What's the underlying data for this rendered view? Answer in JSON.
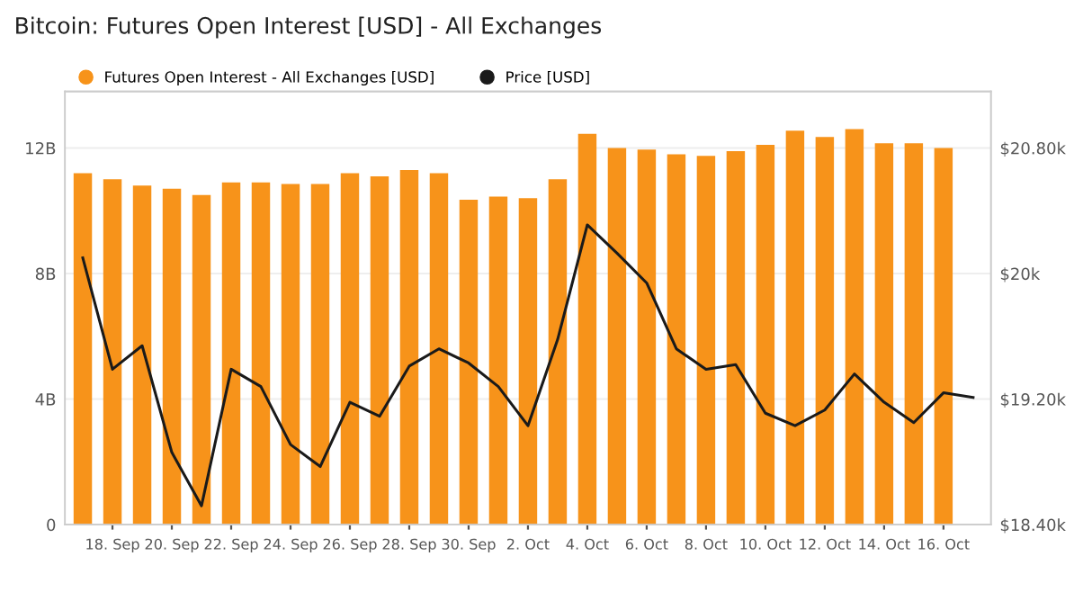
{
  "chart_data": {
    "type": "bar",
    "title": "Bitcoin: Futures Open Interest [USD] - All Exchanges",
    "categories": [
      null,
      "18. Sep",
      null,
      "20. Sep",
      null,
      "22. Sep",
      null,
      "24. Sep",
      null,
      "26. Sep",
      null,
      "28. Sep",
      null,
      "30. Sep",
      null,
      "2. Oct",
      null,
      "4. Oct",
      null,
      "6. Oct",
      null,
      "8. Oct",
      null,
      "10. Oct",
      null,
      "12. Oct",
      null,
      "14. Oct",
      null,
      "16. Oct",
      null
    ],
    "series": [
      {
        "name": "Futures Open Interest - All Exchanges [USD]",
        "color": "#f7931a",
        "values": [
          11.2,
          11.0,
          10.8,
          10.7,
          10.5,
          10.9,
          10.9,
          10.85,
          10.85,
          11.2,
          11.1,
          11.3,
          11.2,
          10.35,
          10.45,
          10.4,
          11.0,
          12.45,
          12.0,
          11.95,
          11.8,
          11.75,
          11.9,
          12.1,
          12.55,
          12.35,
          12.6,
          12.15,
          12.15,
          12.0,
          null
        ]
      },
      {
        "name": "Price [USD]",
        "type": "line",
        "axis": "y2",
        "color": "#1a1a1a",
        "values": [
          20.1,
          19.39,
          19.54,
          18.86,
          18.52,
          19.39,
          19.28,
          18.91,
          18.77,
          19.18,
          19.09,
          19.41,
          19.52,
          19.43,
          19.28,
          19.03,
          19.58,
          20.31,
          20.13,
          19.94,
          19.52,
          19.39,
          19.42,
          19.11,
          19.03,
          19.13,
          19.36,
          19.18,
          19.05,
          19.24,
          19.21
        ]
      }
    ],
    "ylim": [
      0,
      13.8
    ],
    "yticks": [
      {
        "value": 0,
        "label": "0"
      },
      {
        "value": 4,
        "label": "4B"
      },
      {
        "value": 8,
        "label": "8B"
      },
      {
        "value": 12,
        "label": "12B"
      }
    ],
    "y2lim": [
      18.4,
      21.16
    ],
    "y2ticks": [
      {
        "value": 18.4,
        "label": "$18.40k"
      },
      {
        "value": 19.2,
        "label": "$19.20k"
      },
      {
        "value": 20,
        "label": "$20k"
      },
      {
        "value": 20.8,
        "label": "$20.80k"
      }
    ],
    "grid": "y",
    "legend": "top left",
    "marker": "none",
    "line_style": "solid"
  }
}
